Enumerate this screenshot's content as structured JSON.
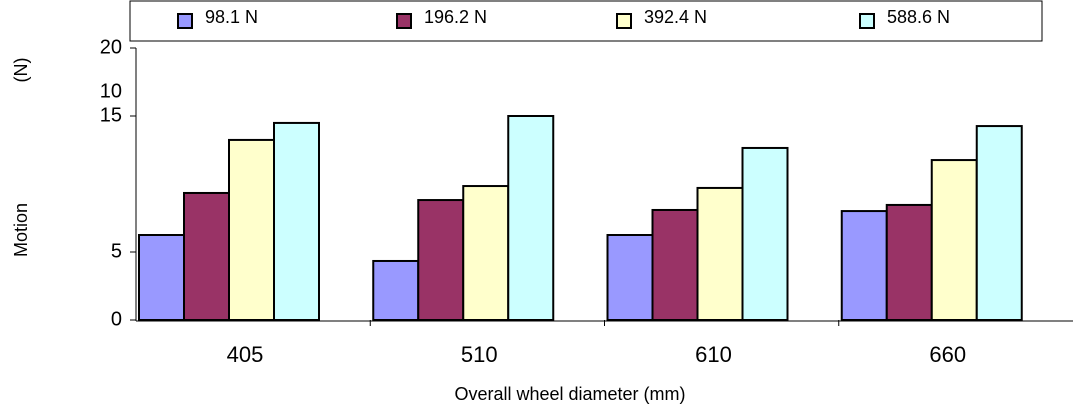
{
  "chart_data": {
    "type": "bar",
    "x_label": "Overall wheel diameter (mm)",
    "y_label": "Motion",
    "annotations": [
      "(N)",
      "10"
    ],
    "categories": [
      "405",
      "510",
      "610",
      "660"
    ],
    "series": [
      {
        "name": "98.1 N",
        "color": "#9999ff",
        "values": [
          6.25,
          4.34,
          6.25,
          8.01
        ]
      },
      {
        "name": "196.2 N",
        "color": "#993366",
        "values": [
          9.34,
          8.82,
          8.09,
          8.46
        ]
      },
      {
        "name": "392.4 N",
        "color": "#ffffcc",
        "values": [
          13.24,
          9.85,
          9.71,
          11.76
        ]
      },
      {
        "name": "588.6 N",
        "color": "#ccffff",
        "values": [
          14.49,
          15.0,
          12.65,
          14.26
        ]
      }
    ],
    "ylim": [
      0,
      20
    ],
    "yticks": [
      0,
      5,
      15,
      20
    ],
    "grid": false,
    "legend": "top"
  }
}
